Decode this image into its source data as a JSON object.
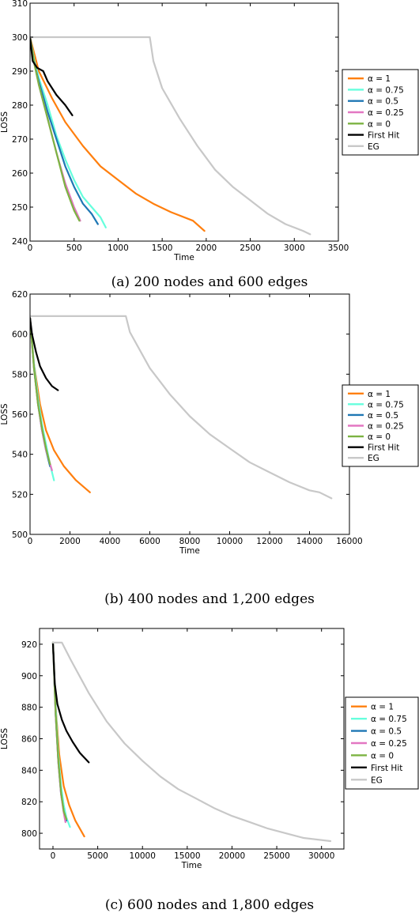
{
  "chart_data": [
    {
      "type": "line",
      "caption": "(a) 200 nodes and 600 edges",
      "xlabel": "Time",
      "ylabel": "LOSS",
      "xlim": [
        0,
        3500
      ],
      "ylim": [
        240,
        310
      ],
      "xticks": [
        0,
        500,
        1000,
        1500,
        2000,
        2500,
        3000,
        3500
      ],
      "yticks": [
        240,
        250,
        260,
        270,
        280,
        290,
        300,
        310
      ],
      "xtick_labels": [
        "0",
        "500",
        "1000",
        "1500",
        "2000",
        "2500",
        "3000",
        "3500"
      ],
      "ytick_labels": [
        "240",
        "250",
        "260",
        "270",
        "280",
        "290",
        "300",
        "310"
      ],
      "grid": false,
      "legend_position": "right",
      "series": [
        {
          "name": "α = 1",
          "color": "#ff7f0e",
          "x": [
            0,
            100,
            250,
            400,
            600,
            800,
            1000,
            1200,
            1400,
            1600,
            1850,
            1980
          ],
          "y": [
            300,
            290,
            282,
            275,
            268,
            262,
            258,
            254,
            251,
            248.5,
            246,
            243
          ]
        },
        {
          "name": "α = 0.75",
          "color": "#66ffdd",
          "x": [
            0,
            50,
            100,
            200,
            300,
            400,
            500,
            600,
            700,
            800,
            860
          ],
          "y": [
            300,
            293,
            288,
            280,
            271,
            264,
            258,
            253,
            250,
            247,
            244
          ]
        },
        {
          "name": "α = 0.5",
          "color": "#1f77b4",
          "x": [
            0,
            50,
            100,
            200,
            300,
            400,
            500,
            600,
            700,
            770
          ],
          "y": [
            300,
            292,
            287,
            278,
            270,
            262,
            256,
            251,
            248,
            245
          ]
        },
        {
          "name": "α = 0.25",
          "color": "#e377c2",
          "x": [
            0,
            50,
            100,
            200,
            300,
            400,
            500,
            570
          ],
          "y": [
            300,
            292,
            286,
            276,
            266,
            257,
            250,
            246
          ]
        },
        {
          "name": "α = 0",
          "color": "#7cb342",
          "x": [
            0,
            50,
            100,
            200,
            300,
            400,
            500,
            560
          ],
          "y": [
            300,
            292,
            286,
            276,
            266,
            256,
            249,
            246
          ]
        },
        {
          "name": "First Hit",
          "color": "#000000",
          "x": [
            0,
            30,
            80,
            150,
            200,
            300,
            400,
            480
          ],
          "y": [
            300,
            293,
            291,
            290,
            287,
            283,
            280,
            277
          ]
        },
        {
          "name": "EG",
          "color": "#c8c8c8",
          "x": [
            0,
            1360,
            1400,
            1500,
            1700,
            1900,
            2100,
            2300,
            2500,
            2700,
            2900,
            3100,
            3180
          ],
          "y": [
            300,
            300,
            293,
            285,
            276,
            268,
            261,
            256,
            252,
            248,
            245,
            243,
            242
          ]
        }
      ]
    },
    {
      "type": "line",
      "caption": "(b) 400 nodes and 1,200 edges",
      "xlabel": "Time",
      "ylabel": "LOSS",
      "xlim": [
        0,
        16000
      ],
      "ylim": [
        500,
        620
      ],
      "xticks": [
        0,
        2000,
        4000,
        6000,
        8000,
        10000,
        12000,
        14000,
        16000
      ],
      "yticks": [
        500,
        520,
        540,
        560,
        580,
        600,
        620
      ],
      "xtick_labels": [
        "0",
        "2000",
        "4000",
        "6000",
        "8000",
        "10000",
        "12000",
        "14000",
        "16000"
      ],
      "ytick_labels": [
        "500",
        "520",
        "540",
        "560",
        "580",
        "600",
        "620"
      ],
      "grid": false,
      "legend_position": "right",
      "series": [
        {
          "name": "α = 1",
          "color": "#ff7f0e",
          "x": [
            0,
            200,
            500,
            800,
            1200,
            1700,
            2300,
            3000
          ],
          "y": [
            608,
            585,
            565,
            552,
            542,
            534,
            527,
            521
          ]
        },
        {
          "name": "α = 0.75",
          "color": "#66ffdd",
          "x": [
            0,
            200,
            400,
            600,
            800,
            1000,
            1200
          ],
          "y": [
            608,
            585,
            568,
            555,
            545,
            535,
            527
          ]
        },
        {
          "name": "α = 0.5",
          "color": "#1f77b4",
          "x": [
            0,
            200,
            400,
            600,
            800,
            1000
          ],
          "y": [
            608,
            583,
            565,
            552,
            542,
            534
          ]
        },
        {
          "name": "α = 0.25",
          "color": "#e377c2",
          "x": [
            0,
            200,
            400,
            600,
            800,
            1100
          ],
          "y": [
            608,
            583,
            565,
            552,
            542,
            532
          ]
        },
        {
          "name": "α = 0",
          "color": "#7cb342",
          "x": [
            0,
            200,
            400,
            600,
            800,
            1000
          ],
          "y": [
            608,
            583,
            565,
            553,
            543,
            535
          ]
        },
        {
          "name": "First Hit",
          "color": "#000000",
          "x": [
            0,
            100,
            300,
            500,
            800,
            1100,
            1400
          ],
          "y": [
            608,
            600,
            591,
            584,
            578,
            574,
            572
          ]
        },
        {
          "name": "EG",
          "color": "#c8c8c8",
          "x": [
            0,
            4800,
            5000,
            6000,
            7000,
            8000,
            9000,
            10000,
            11000,
            12000,
            13000,
            14000,
            14500,
            15100
          ],
          "y": [
            609,
            609,
            601,
            583,
            570,
            559,
            550,
            543,
            536,
            531,
            526,
            522,
            521,
            518
          ]
        }
      ]
    },
    {
      "type": "line",
      "caption": "(c) 600 nodes and 1,800 edges",
      "xlabel": "Time",
      "ylabel": "LOSS",
      "xlim": [
        -1500,
        32500
      ],
      "ylim": [
        790,
        930
      ],
      "xticks": [
        0,
        5000,
        10000,
        15000,
        20000,
        25000,
        30000
      ],
      "yticks": [
        800,
        820,
        840,
        860,
        880,
        900,
        920
      ],
      "xtick_labels": [
        "0",
        "5000",
        "10000",
        "15000",
        "20000",
        "25000",
        "30000"
      ],
      "ytick_labels": [
        "800",
        "820",
        "840",
        "860",
        "880",
        "900",
        "920"
      ],
      "grid": false,
      "legend_position": "right",
      "series": [
        {
          "name": "α = 1",
          "color": "#ff7f0e",
          "x": [
            0,
            300,
            700,
            1200,
            1800,
            2500,
            3500
          ],
          "y": [
            921,
            880,
            850,
            830,
            818,
            808,
            798
          ]
        },
        {
          "name": "α = 0.75",
          "color": "#66ffdd",
          "x": [
            0,
            300,
            600,
            900,
            1200,
            1500,
            1900
          ],
          "y": [
            921,
            880,
            850,
            830,
            818,
            810,
            804
          ]
        },
        {
          "name": "α = 0.5",
          "color": "#1f77b4",
          "x": [
            0,
            300,
            600,
            900,
            1200,
            1500
          ],
          "y": [
            921,
            875,
            845,
            825,
            814,
            808
          ]
        },
        {
          "name": "α = 0.25",
          "color": "#e377c2",
          "x": [
            0,
            300,
            600,
            900,
            1200,
            1400
          ],
          "y": [
            921,
            875,
            845,
            825,
            813,
            807
          ]
        },
        {
          "name": "α = 0",
          "color": "#7cb342",
          "x": [
            0,
            300,
            600,
            900,
            1200,
            1500
          ],
          "y": [
            921,
            876,
            846,
            826,
            814,
            809
          ]
        },
        {
          "name": "First Hit",
          "color": "#000000",
          "x": [
            0,
            200,
            500,
            1000,
            1500,
            2200,
            3000,
            4000
          ],
          "y": [
            920,
            895,
            882,
            872,
            865,
            858,
            851,
            845
          ]
        },
        {
          "name": "EG",
          "color": "#c8c8c8",
          "x": [
            0,
            1000,
            2000,
            4000,
            6000,
            8000,
            10000,
            12000,
            14000,
            16000,
            18000,
            20000,
            22000,
            24000,
            26000,
            28000,
            31000
          ],
          "y": [
            921,
            921,
            910,
            889,
            871,
            857,
            846,
            836,
            828,
            822,
            816,
            811,
            807,
            803,
            800,
            797,
            795
          ]
        }
      ]
    }
  ]
}
